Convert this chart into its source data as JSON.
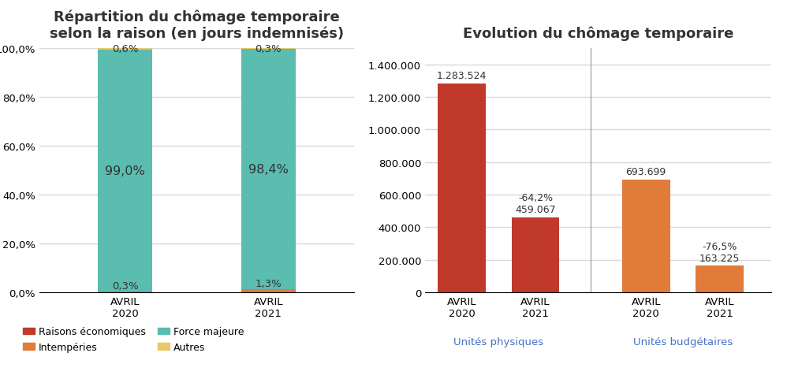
{
  "left_title": "Répartition du chômage temporaire\nselon la raison (en jours indemnisés)",
  "right_title": "Evolution du chômage temporaire",
  "categories": [
    "AVRIL\n2020",
    "AVRIL\n2021"
  ],
  "stacked_data": {
    "Raisons économiques": [
      0.1,
      0.0
    ],
    "Intempéries": [
      0.3,
      1.3
    ],
    "Force majeure": [
      99.0,
      98.4
    ],
    "Autres": [
      0.6,
      0.3
    ]
  },
  "stacked_colors": {
    "Raisons économiques": "#c0392b",
    "Intempéries": "#e07b3a",
    "Force majeure": "#5bbcb0",
    "Autres": "#e8c96a"
  },
  "bar_labels_left": {
    "Intempéries_0": "0,3%",
    "Intempéries_1": "1,3%",
    "Force majeure_0": "99,0%",
    "Force majeure_1": "98,4%",
    "Autres_0": "0,6%",
    "Autres_1": "0,3%"
  },
  "right_bars": {
    "physiques_2020": 1283524,
    "physiques_2021": 459067,
    "budgetaires_2020": 693699,
    "budgetaires_2021": 163225
  },
  "right_colors": {
    "physiques": "#c0392b",
    "budgetaires": "#e07b3a"
  },
  "right_labels": {
    "physiques_2020": "1.283.524",
    "physiques_2021": "-64,2%\n459.067",
    "budgetaires_2020": "693.699",
    "budgetaires_2021": "-76,5%\n163.225"
  },
  "right_xtick_labels": [
    "AVRIL\n2020",
    "AVRIL\n2021",
    "AVRIL\n2020",
    "AVRIL\n2021"
  ],
  "right_group_labels": [
    "Unités physiques",
    "Unités budgétaires"
  ],
  "right_ylim": [
    0,
    1500000
  ],
  "right_yticks": [
    0,
    200000,
    400000,
    600000,
    800000,
    1000000,
    1200000,
    1400000
  ],
  "right_ytick_labels": [
    "0",
    "200.000",
    "400.000",
    "600.000",
    "800.000",
    "1.000.000",
    "1.200.000",
    "1.400.000"
  ],
  "background_color": "#ffffff",
  "grid_color": "#d9d9d9",
  "title_fontsize": 13,
  "label_fontsize": 10,
  "tick_fontsize": 9.5
}
